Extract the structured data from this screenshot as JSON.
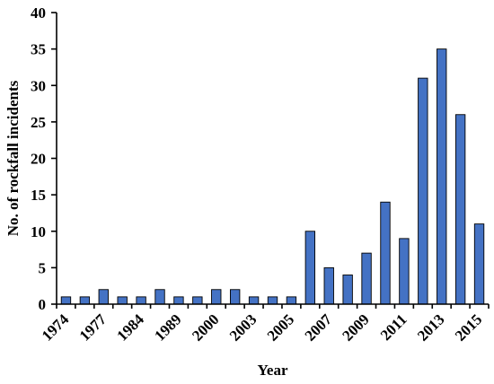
{
  "chart_data": {
    "type": "bar",
    "title": "",
    "xlabel": "Year",
    "ylabel": "No. of rockfall incidents",
    "categories": [
      "1974",
      "",
      "1977",
      "",
      "1984",
      "",
      "1989",
      "",
      "2000",
      "",
      "2003",
      "",
      "2005",
      "",
      "2007",
      "",
      "2009",
      "",
      "2011",
      "",
      "2013",
      "",
      "2015"
    ],
    "values": [
      1,
      1,
      2,
      1,
      1,
      2,
      1,
      1,
      2,
      2,
      1,
      1,
      1,
      10,
      5,
      4,
      7,
      14,
      9,
      31,
      35,
      26,
      11
    ],
    "ylim": [
      0,
      40
    ],
    "yticks": [
      0,
      5,
      10,
      15,
      20,
      25,
      30,
      35,
      40
    ],
    "xtick_labels": [
      "1974",
      "1977",
      "1984",
      "1989",
      "2000",
      "2003",
      "2005",
      "2007",
      "2009",
      "2011",
      "2013",
      "2015"
    ],
    "bar_color": "#4472C4",
    "grid": false,
    "legend": "none"
  }
}
